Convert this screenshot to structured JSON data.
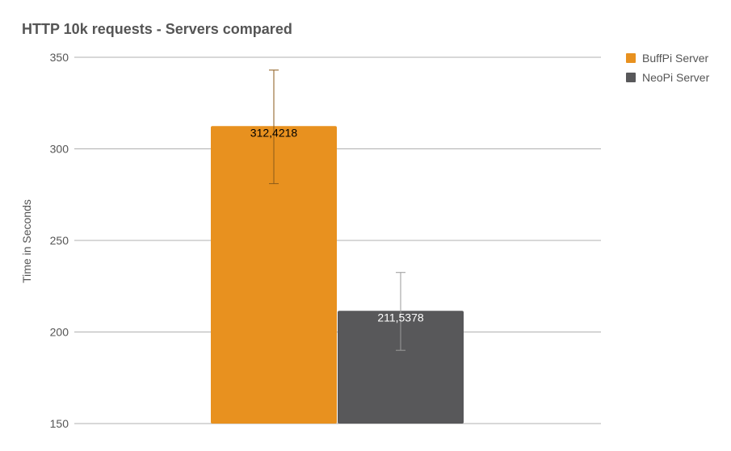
{
  "chart_data": {
    "type": "bar",
    "title": "HTTP 10k requests - Servers compared",
    "ylabel": "Time in Seconds",
    "ylim": [
      150,
      350
    ],
    "yticks": [
      150,
      200,
      250,
      300,
      350
    ],
    "ytick_labels": [
      "150",
      "200",
      "250",
      "300",
      "350"
    ],
    "grid": true,
    "legend_position": "top-right",
    "series": [
      {
        "name": "BuffPi Server",
        "value": 312.4218,
        "label": "312,4218",
        "error_high": 343,
        "error_low": 281,
        "color": "#e8911f",
        "label_color": "#000000",
        "error_color": "#8a5a1a"
      },
      {
        "name": "NeoPi Server",
        "value": 211.5378,
        "label": "211,5378",
        "error_high": 232.5,
        "error_low": 190,
        "color": "#58585a",
        "label_color": "#ffffff",
        "error_color": "#9a9a9a"
      }
    ]
  }
}
